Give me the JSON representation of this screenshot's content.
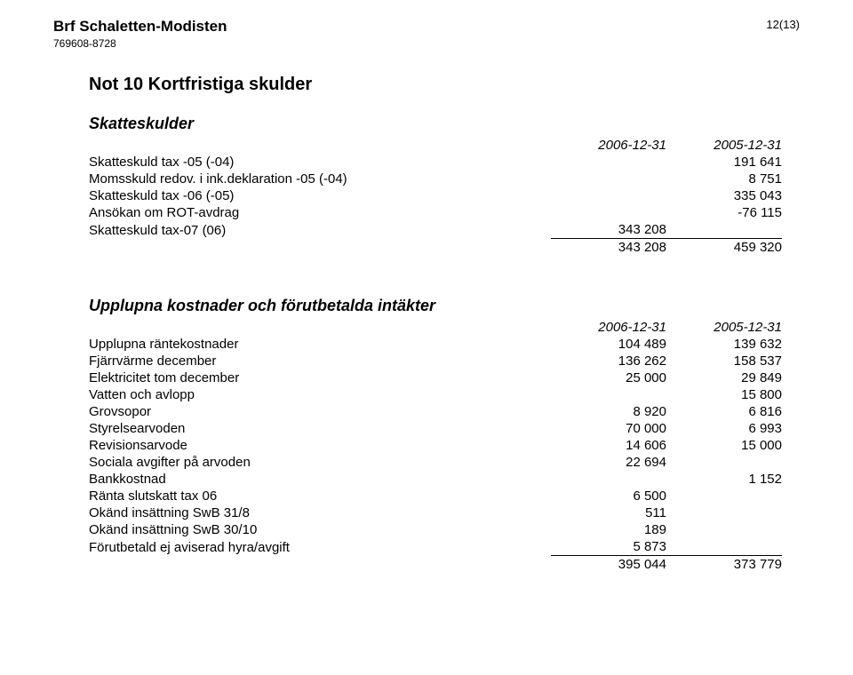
{
  "header": {
    "org_name": "Brf Schaletten-Modisten",
    "org_id": "769608-8728",
    "page_number": "12(13)"
  },
  "note": {
    "title": "Not 10  Kortfristiga skulder"
  },
  "section1": {
    "title": "Skatteskulder",
    "col_date1": "2006-12-31",
    "col_date2": "2005-12-31",
    "rows": [
      {
        "label": "Skatteskuld tax -05  (-04)",
        "v1": "",
        "v2": "191 641"
      },
      {
        "label": "Momsskuld redov. i ink.deklaration -05 (-04)",
        "v1": "",
        "v2": "8 751"
      },
      {
        "label": "Skatteskuld tax -06 (-05)",
        "v1": "",
        "v2": "335 043"
      },
      {
        "label": "Ansökan om  ROT-avdrag",
        "v1": "",
        "v2": "-76 115"
      },
      {
        "label": "Skatteskuld tax-07 (06)",
        "v1": "343 208",
        "v2": ""
      }
    ],
    "subtotal": {
      "v1": "343 208",
      "v2": "459 320"
    }
  },
  "section2": {
    "title": "Upplupna kostnader och förutbetalda intäkter",
    "col_date1": "2006-12-31",
    "col_date2": "2005-12-31",
    "rows": [
      {
        "label": "Upplupna räntekostnader",
        "v1": "104 489",
        "v2": "139 632"
      },
      {
        "label": "Fjärrvärme december",
        "v1": "136 262",
        "v2": "158 537"
      },
      {
        "label": "Elektricitet tom december",
        "v1": "25 000",
        "v2": "29 849"
      },
      {
        "label": "Vatten och avlopp",
        "v1": "",
        "v2": "15 800"
      },
      {
        "label": "Grovsopor",
        "v1": "8 920",
        "v2": "6 816"
      },
      {
        "label": "Styrelsearvoden",
        "v1": "70 000",
        "v2": "6 993"
      },
      {
        "label": "Revisionsarvode",
        "v1": "14 606",
        "v2": "15 000"
      },
      {
        "label": "Sociala avgifter på arvoden",
        "v1": "22 694",
        "v2": ""
      },
      {
        "label": "Bankkostnad",
        "v1": "",
        "v2": "1 152"
      },
      {
        "label": "Ränta slutskatt tax 06",
        "v1": "6 500",
        "v2": ""
      },
      {
        "label": "Okänd insättning SwB 31/8",
        "v1": "511",
        "v2": ""
      },
      {
        "label": "Okänd insättning SwB 30/10",
        "v1": "189",
        "v2": ""
      },
      {
        "label": "Förutbetald ej aviserad hyra/avgift",
        "v1": "5 873",
        "v2": ""
      }
    ],
    "total": {
      "v1": "395 044",
      "v2": "373 779"
    }
  }
}
